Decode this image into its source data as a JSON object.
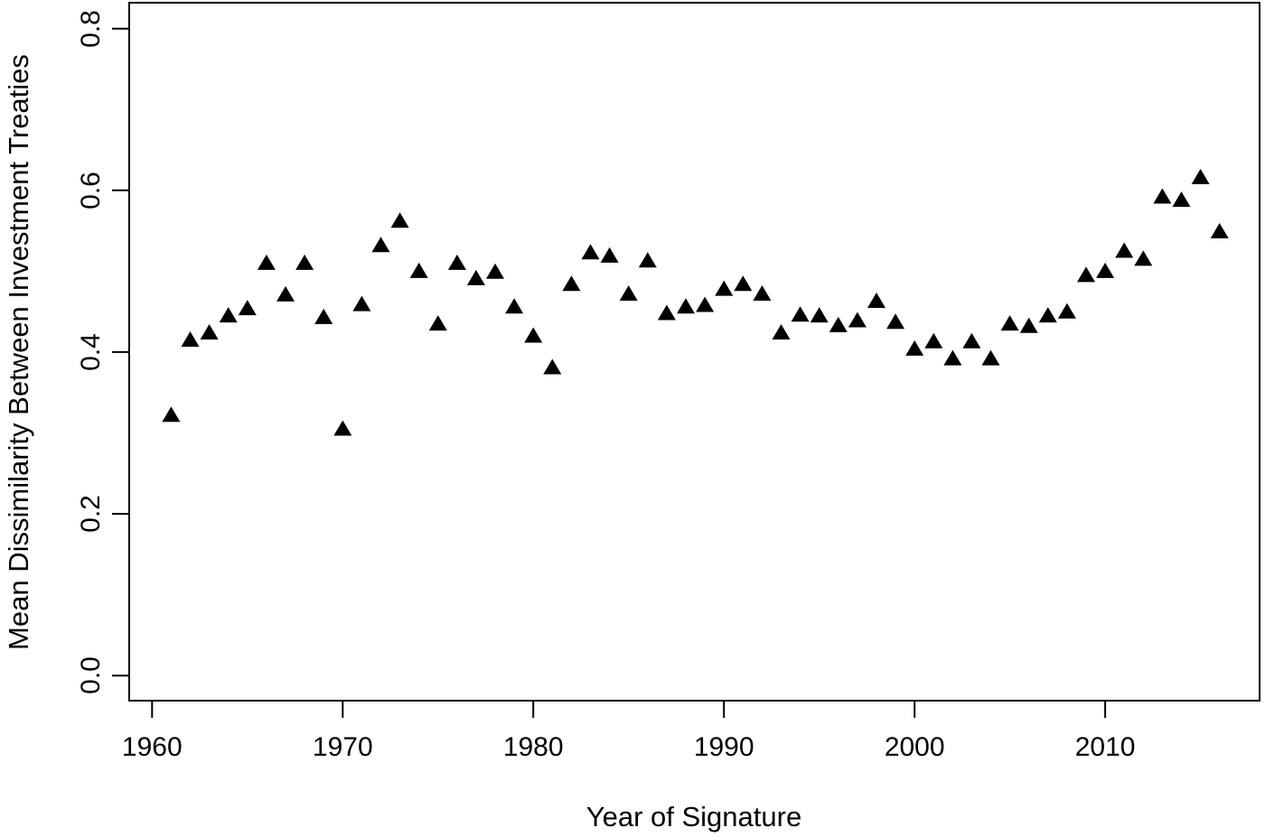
{
  "figure": {
    "background": "#ffffff",
    "foreground": "#000000"
  },
  "chart_data": {
    "type": "scatter",
    "title": "",
    "xlabel": "Year of Signature",
    "ylabel": "Mean Dissimilarity Between Investment Treaties",
    "marker": "filled-triangle-up",
    "marker_color": "#000000",
    "axis_color": "#000000",
    "grid": false,
    "legend": "none",
    "xlim": [
      1958.8,
      2018.1
    ],
    "ylim": [
      -0.031,
      0.832
    ],
    "x_tick_values": [
      1960,
      1970,
      1980,
      1990,
      2000,
      2010
    ],
    "x_tick_labels": [
      "1960",
      "1970",
      "1980",
      "1990",
      "2000",
      "2010"
    ],
    "y_tick_values": [
      0.0,
      0.2,
      0.4,
      0.6,
      0.8
    ],
    "y_tick_labels": [
      "0.0",
      "0.2",
      "0.4",
      "0.6",
      "0.8"
    ],
    "x": [
      1961,
      1962,
      1963,
      1964,
      1965,
      1966,
      1967,
      1968,
      1969,
      1970,
      1971,
      1972,
      1973,
      1974,
      1975,
      1976,
      1977,
      1978,
      1979,
      1980,
      1981,
      1982,
      1983,
      1984,
      1985,
      1986,
      1987,
      1988,
      1989,
      1990,
      1991,
      1992,
      1993,
      1994,
      1995,
      1996,
      1997,
      1998,
      1999,
      2000,
      2001,
      2002,
      2003,
      2004,
      2005,
      2006,
      2007,
      2008,
      2009,
      2010,
      2011,
      2012,
      2013,
      2014,
      2015,
      2016
    ],
    "y": [
      0.322,
      0.415,
      0.424,
      0.445,
      0.454,
      0.51,
      0.471,
      0.51,
      0.443,
      0.305,
      0.459,
      0.532,
      0.562,
      0.5,
      0.435,
      0.51,
      0.491,
      0.499,
      0.456,
      0.42,
      0.381,
      0.484,
      0.523,
      0.519,
      0.472,
      0.513,
      0.448,
      0.456,
      0.458,
      0.478,
      0.484,
      0.472,
      0.424,
      0.446,
      0.445,
      0.433,
      0.439,
      0.463,
      0.437,
      0.404,
      0.413,
      0.392,
      0.413,
      0.392,
      0.435,
      0.432,
      0.445,
      0.45,
      0.495,
      0.5,
      0.525,
      0.515,
      0.592,
      0.588,
      0.616,
      0.549
    ]
  }
}
